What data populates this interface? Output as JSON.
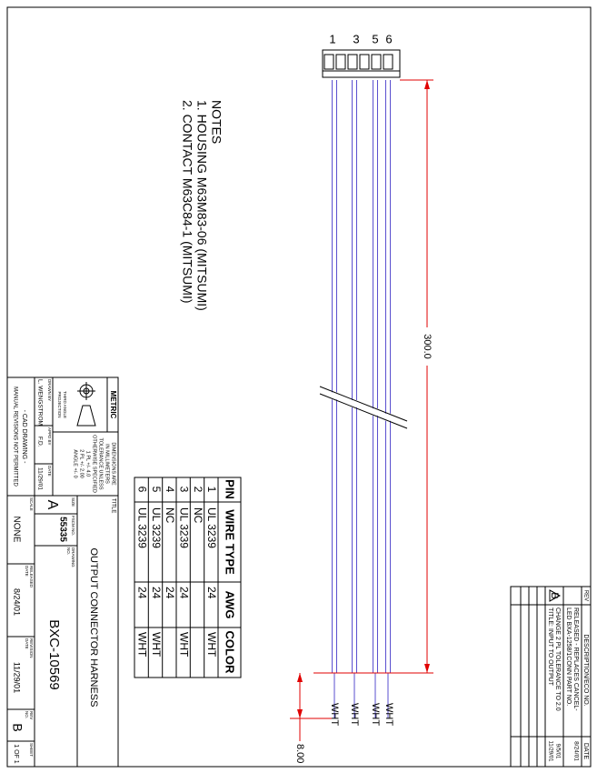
{
  "pins": [
    "1",
    "3",
    "5",
    "6"
  ],
  "notes": {
    "title": "NOTES",
    "items": [
      "1. HOUSING M63M83-06 (MITSUMI)",
      "2. CONTACT M63C84-1 (MITSUMI)"
    ]
  },
  "dimensions": {
    "length": "300.0",
    "strip": "8.00"
  },
  "wire_labels": [
    "WHT",
    "WHT",
    "WHT",
    "WHT"
  ],
  "pin_table": {
    "headers": [
      "PIN",
      "WIRE TYPE",
      "AWG",
      "COLOR"
    ],
    "rows": [
      {
        "pin": "1",
        "wire_type": "UL 3239",
        "awg": "24",
        "color": "WHT"
      },
      {
        "pin": "2",
        "wire_type": "NC"
      },
      {
        "pin": "3",
        "wire_type": "UL 3239",
        "awg": "24",
        "color": "WHT"
      },
      {
        "pin": "4",
        "wire_type": "NC",
        "awg": "24"
      },
      {
        "pin": "5",
        "wire_type": "UL 3239",
        "awg": "24",
        "color": "WHT"
      },
      {
        "pin": "6",
        "wire_type": "UL 3239",
        "awg": "24",
        "color": "WHT"
      }
    ]
  },
  "revision_table": {
    "headers": [
      "REV",
      "DESCRIPTION/ECO NO.",
      "DATE"
    ],
    "rows": [
      {
        "description": [
          "RELEASED - REPLACES CANCEL-",
          "LED BXA-1258/1CONN PART NO."
        ],
        "date": [
          "8/24/01"
        ]
      },
      {
        "rev": "B",
        "description": [
          "CHANGE 2 PL TOLERANCE TO 2.0",
          "TITLE: INPUT TO OUTPUT"
        ],
        "date": [
          "9/5/01",
          "11/29/01"
        ]
      }
    ]
  },
  "title_block": {
    "metric": "METRIC",
    "projection": [
      "THIRD ANGLE",
      "PROJECTION"
    ],
    "tolerances": [
      "DIMENSIONS ARE",
      "IN MILLIMETERS",
      "TOLERANCE UNLESS",
      "OTHERWISE SPECIFIED",
      "1 PL +/- 4.0",
      "2 PL +/- 2.00",
      "ANGLE +/- 0"
    ],
    "drawn_by_label": "DRAWN BY",
    "drawn_by": "L. WENGSTROM",
    "appd_by_label": "APPD BY",
    "appd_by": "F.D.",
    "date_label": "DATE",
    "date": "11/29/01",
    "cad": [
      "- CAD DRAWING -",
      "MANUAL REVISIONS NOT PERMITTED"
    ],
    "title_label": "TITLE",
    "title": "OUTPUT CONNECTOR HARNESS",
    "size_label": "SIZE",
    "size": "A",
    "fscm_label": "FSCM NO.",
    "fscm": "55335",
    "drawing_no_label": [
      "DRAWING",
      "NO."
    ],
    "drawing_no": "BXC-10569",
    "scale_label": "SCALE",
    "scale": "NONE",
    "released_label": [
      "RELEASED",
      "DATE"
    ],
    "released": "8/24/01",
    "revision_date_label": [
      "REVISION",
      "DATE"
    ],
    "revision_date": "11/29/01",
    "rev_no_label": [
      "REV",
      "NO."
    ],
    "rev_no": "B",
    "sheet_label": "SHEET",
    "sheet": "1 OF 1"
  }
}
